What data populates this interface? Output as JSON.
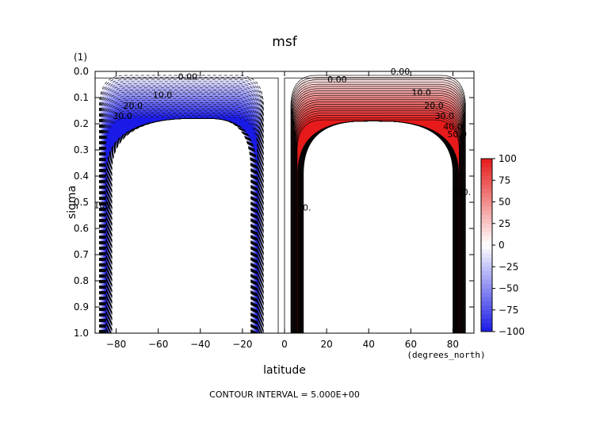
{
  "chart_data": {
    "type": "contour",
    "title": "msf",
    "xlabel": "latitude",
    "ylabel": "sigma",
    "y_unit_label": "(1)",
    "x_unit_label": "(degrees_north)",
    "xlim": [
      -90,
      90
    ],
    "ylim": [
      1.0,
      0.0
    ],
    "y_inverted": true,
    "x_ticks": [
      -80,
      -60,
      -40,
      -20,
      0,
      20,
      40,
      60,
      80
    ],
    "y_ticks": [
      0.0,
      0.1,
      0.2,
      0.3,
      0.4,
      0.5,
      0.6,
      0.7,
      0.8,
      0.9,
      1.0
    ],
    "y_tick_labels": [
      "0.0",
      "0.1",
      "0.2",
      "0.3",
      "0.4",
      "0.5",
      "0.6",
      "0.7",
      "0.8",
      "0.9",
      "1.0"
    ],
    "colorbar": {
      "min": -100,
      "max": 100,
      "ticks": [
        100,
        75,
        50,
        25,
        0,
        -25,
        -50,
        -75,
        -100
      ],
      "tick_labels": [
        "100",
        "75",
        "50",
        "25",
        "0",
        "−25",
        "−50",
        "−75",
        "−100"
      ],
      "colormap": "blue-white-red",
      "color_negative": "#1a1ae6",
      "color_positive": "#e61a1a",
      "color_zero": "#ffffff"
    },
    "contour_interval": 5.0,
    "cells": [
      {
        "name": "southern cell",
        "sign": "negative",
        "lat_range": [
          -88,
          -10
        ],
        "sigma_top": 0.18,
        "center_lat": -40
      },
      {
        "name": "northern cell",
        "sign": "positive",
        "lat_range": [
          3,
          86
        ],
        "sigma_top": 0.19,
        "center_lat": 42
      }
    ],
    "contour_labels": [
      {
        "text": "0.00",
        "lat": -46,
        "sigma": 0.02
      },
      {
        "text": "0.00",
        "lat": 25,
        "sigma": 0.03
      },
      {
        "text": "0.00",
        "lat": 55,
        "sigma": 0.0
      },
      {
        "text": "10.0",
        "lat": -58,
        "sigma": 0.09
      },
      {
        "text": "20.0",
        "lat": -72,
        "sigma": 0.13
      },
      {
        "text": "30.0",
        "lat": -77,
        "sigma": 0.17
      },
      {
        "text": "10.0",
        "lat": 65,
        "sigma": 0.08
      },
      {
        "text": "20.0",
        "lat": 71,
        "sigma": 0.13
      },
      {
        "text": "30.0",
        "lat": 76,
        "sigma": 0.17
      },
      {
        "text": "40.0",
        "lat": 80,
        "sigma": 0.21
      },
      {
        "text": "50.0",
        "lat": 82,
        "sigma": 0.24
      },
      {
        "text": "100.",
        "lat": 84,
        "sigma": 0.46
      },
      {
        "text": "100.",
        "lat": 8,
        "sigma": 0.52
      },
      {
        "text": "100.",
        "lat": -86,
        "sigma": 0.51
      }
    ]
  },
  "footer": {
    "contour_interval_text": "CONTOUR INTERVAL = 5.000E+00"
  }
}
